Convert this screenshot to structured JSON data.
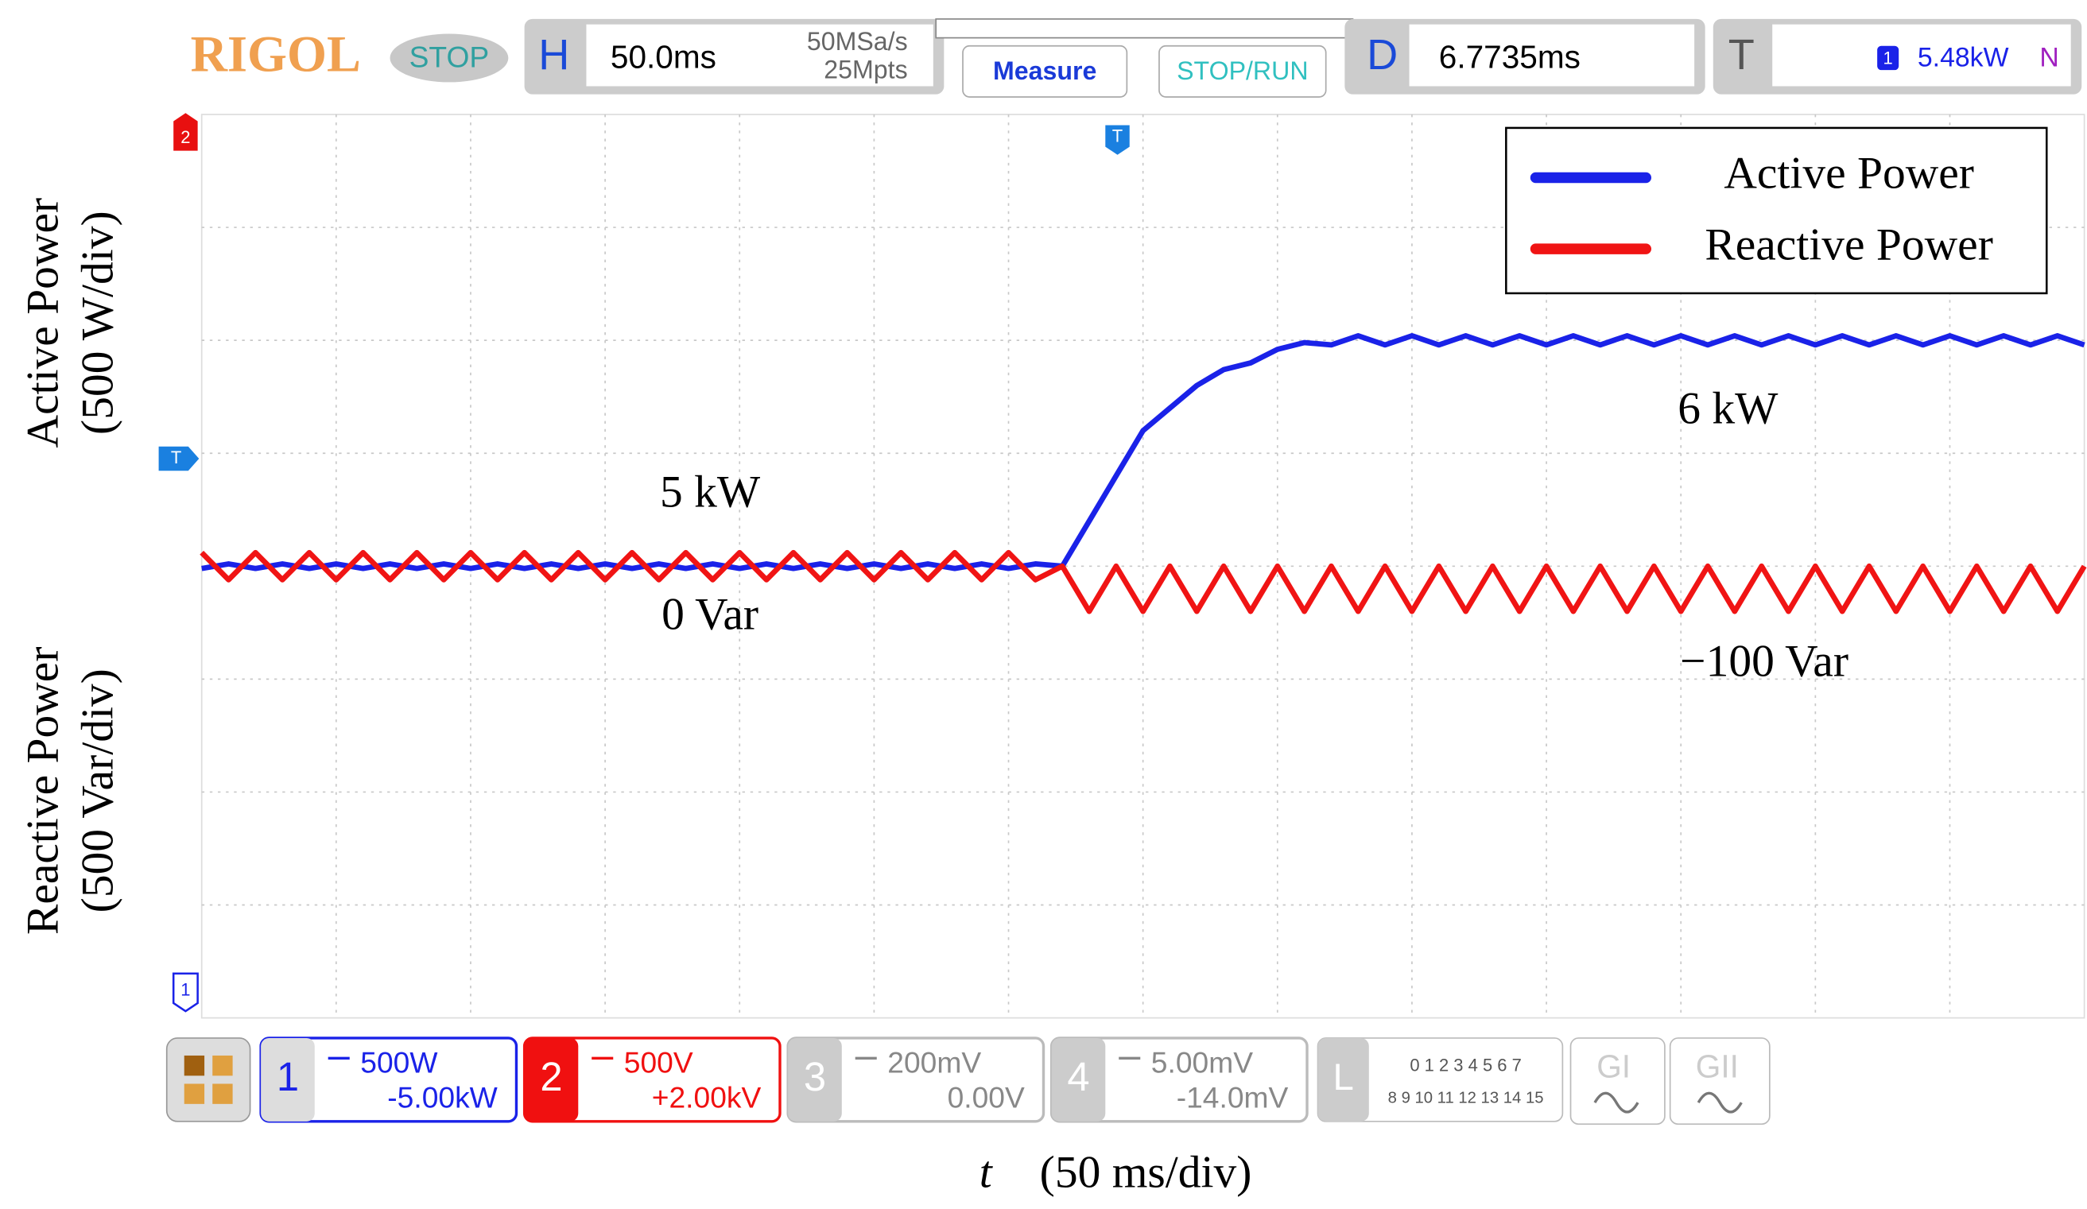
{
  "ui": {
    "brand": "RIGOL",
    "status": "STOP",
    "h_label": "H",
    "timebase": "50.0ms",
    "sample_rate": "50MSa/s",
    "memory": "25Mpts",
    "measure": "Measure",
    "stop_run": "STOP/RUN",
    "d_label": "D",
    "delay": "6.7735ms",
    "t_label": "T",
    "trigger_source": "1",
    "trigger_level": "5.48kW",
    "trigger_mode": "N",
    "channels": [
      {
        "number": "1",
        "scale": "500W",
        "offset": "-5.00kW",
        "color": "#1a22e8"
      },
      {
        "number": "2",
        "scale": "500V",
        "offset": "+2.00kV",
        "color": "#f01010"
      },
      {
        "number": "3",
        "scale": "200mV",
        "offset": "0.00V",
        "color": "#aaaaaa"
      },
      {
        "number": "4",
        "scale": "5.00mV",
        "offset": "-14.0mV",
        "color": "#aaaaaa"
      }
    ],
    "logic_label": "L",
    "logic_row1": "0 1 2 3  4 5 6 7",
    "logic_row2": "8 9 10 11 12 13 14 15",
    "gen1": "GI",
    "gen2": "GII",
    "marker_ch2": "2",
    "marker_trig": "T",
    "marker_ch1": "1",
    "marker_trig_top": "T"
  },
  "chart_data": {
    "type": "line",
    "ylabel": [
      "Active Power",
      "(500 W/div)"
    ],
    "y2label": [
      "Reactive Power",
      "(500 Var/div)"
    ],
    "xlabel_var": "t",
    "xlabel_unit": "(50 ms/div)",
    "annotations": [
      "5 kW",
      "0 Var",
      "6 kW",
      "−100 Var"
    ],
    "xlim": [
      0,
      700
    ],
    "ylim": [
      3000,
      7000
    ],
    "y2lim": [
      -2000,
      2000
    ],
    "grid": true,
    "grid_divisions": [
      14,
      8
    ],
    "legend": "upper right",
    "x": [
      0,
      10,
      20,
      30,
      40,
      50,
      60,
      70,
      80,
      90,
      100,
      110,
      120,
      130,
      140,
      150,
      160,
      170,
      180,
      190,
      200,
      210,
      220,
      230,
      240,
      250,
      260,
      270,
      280,
      290,
      300,
      310,
      320,
      330,
      340,
      350,
      360,
      370,
      380,
      390,
      400,
      410,
      420,
      430,
      440,
      450,
      460,
      470,
      480,
      490,
      500,
      510,
      520,
      530,
      540,
      550,
      560,
      570,
      580,
      590,
      600,
      610,
      620,
      630,
      640,
      650,
      660,
      670,
      680,
      690,
      700
    ],
    "series": [
      {
        "name": "Active Power",
        "color": "#1a22e8",
        "values": [
          4990,
          5010,
          4990,
          5010,
          4990,
          5010,
          4990,
          5010,
          4990,
          5010,
          4990,
          5010,
          4990,
          5010,
          4990,
          5010,
          4990,
          5010,
          4990,
          5010,
          4990,
          5010,
          4990,
          5010,
          4990,
          5010,
          4990,
          5010,
          4990,
          5010,
          4990,
          5010,
          5000,
          5200,
          5400,
          5600,
          5700,
          5800,
          5870,
          5900,
          5960,
          5990,
          5980,
          6020,
          5980,
          6020,
          5980,
          6020,
          5980,
          6020,
          5980,
          6020,
          5980,
          6020,
          5980,
          6020,
          5980,
          6020,
          5980,
          6020,
          5980,
          6020,
          5980,
          6020,
          5980,
          6020,
          5980,
          6020,
          5980,
          6020,
          5980
        ]
      },
      {
        "name": "Reactive Power",
        "color": "#f01414",
        "axis": "y2",
        "values": [
          60,
          -60,
          60,
          -60,
          60,
          -60,
          60,
          -60,
          60,
          -60,
          60,
          -60,
          60,
          -60,
          60,
          -60,
          60,
          -60,
          60,
          -60,
          60,
          -60,
          60,
          -60,
          60,
          -60,
          60,
          -60,
          60,
          -60,
          60,
          -60,
          0,
          -200,
          0,
          -200,
          0,
          -200,
          0,
          -200,
          0,
          -200,
          0,
          -200,
          0,
          -200,
          0,
          -200,
          0,
          -200,
          0,
          -200,
          0,
          -200,
          0,
          -200,
          0,
          -200,
          0,
          -200,
          0,
          -200,
          0,
          -200,
          0,
          -200,
          0,
          -200,
          0,
          -200,
          0
        ]
      }
    ]
  }
}
